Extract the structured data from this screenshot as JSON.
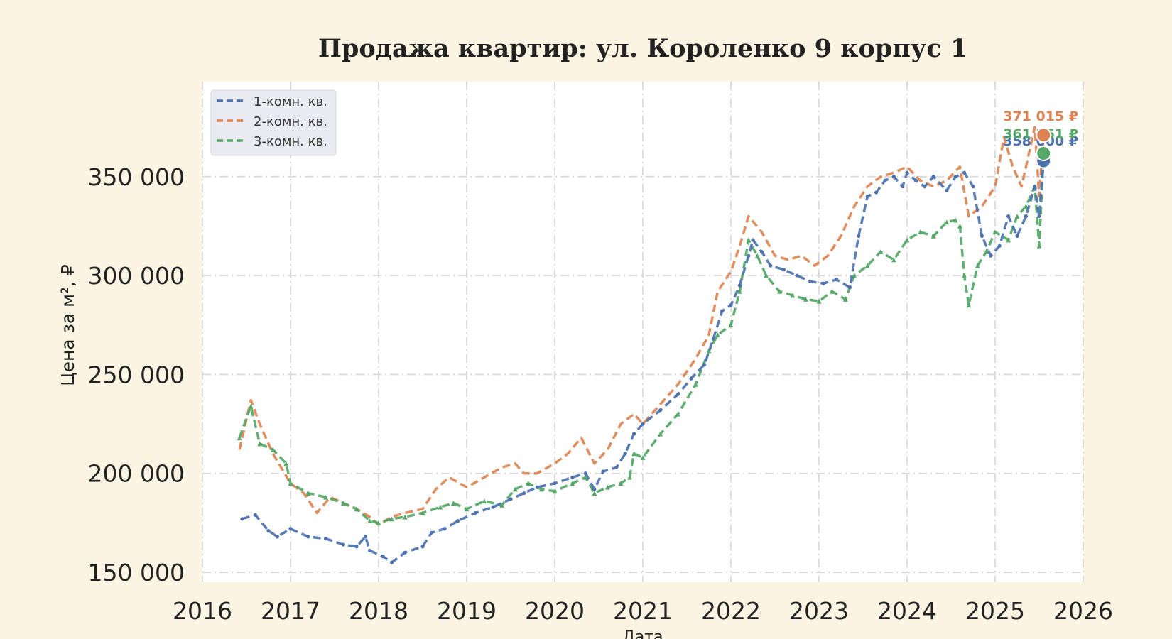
{
  "chart_data": {
    "type": "line",
    "title": "Продажа квартир: ул. Короленко 9 корпус 1",
    "xlabel": "Дата",
    "ylabel": "Цена за м², ₽",
    "xlim": [
      2016,
      2026
    ],
    "ylim": [
      145000,
      398000
    ],
    "x_ticks": [
      "2016",
      "2017",
      "2018",
      "2019",
      "2020",
      "2021",
      "2022",
      "2023",
      "2024",
      "2025",
      "2026"
    ],
    "y_ticks": [
      {
        "value": 150000,
        "label": "150 000"
      },
      {
        "value": 200000,
        "label": "200 000"
      },
      {
        "value": 250000,
        "label": "250 000"
      },
      {
        "value": 300000,
        "label": "300 000"
      },
      {
        "value": 350000,
        "label": "350 000"
      }
    ],
    "grid": true,
    "legend_position": "top-left",
    "series": [
      {
        "name": "1-комн. кв.",
        "color": "#4c72b0",
        "marker": "dot",
        "last_label": "358 000 ₽",
        "last_value": 358000,
        "x": [
          2016.45,
          2016.6,
          2016.75,
          2016.85,
          2017.0,
          2017.2,
          2017.4,
          2017.6,
          2017.75,
          2017.85,
          2017.9,
          2018.05,
          2018.15,
          2018.3,
          2018.5,
          2018.6,
          2018.75,
          2018.9,
          2019.1,
          2019.3,
          2019.5,
          2019.65,
          2019.8,
          2020.0,
          2020.2,
          2020.35,
          2020.45,
          2020.55,
          2020.7,
          2020.8,
          2020.9,
          2021.0,
          2021.2,
          2021.4,
          2021.55,
          2021.7,
          2021.8,
          2021.9,
          2022.0,
          2022.1,
          2022.2,
          2022.25,
          2022.35,
          2022.45,
          2022.6,
          2022.75,
          2022.9,
          2023.05,
          2023.2,
          2023.35,
          2023.45,
          2023.55,
          2023.65,
          2023.75,
          2023.85,
          2023.95,
          2024.0,
          2024.1,
          2024.2,
          2024.3,
          2024.45,
          2024.55,
          2024.65,
          2024.75,
          2024.85,
          2024.95,
          2025.05,
          2025.15,
          2025.25,
          2025.35,
          2025.45,
          2025.5,
          2025.55
        ],
        "values": [
          177000,
          179000,
          171000,
          168000,
          172000,
          168000,
          167000,
          164000,
          163000,
          168000,
          161000,
          158000,
          155000,
          160000,
          163000,
          170000,
          172000,
          176000,
          180000,
          183000,
          187000,
          190000,
          193000,
          195000,
          198000,
          200000,
          192000,
          201000,
          203000,
          210000,
          220000,
          225000,
          232000,
          240000,
          248000,
          255000,
          268000,
          282000,
          285000,
          295000,
          310000,
          318000,
          312000,
          305000,
          303000,
          300000,
          297000,
          296000,
          298000,
          294000,
          320000,
          340000,
          342000,
          348000,
          350000,
          345000,
          352000,
          348000,
          345000,
          350000,
          343000,
          350000,
          352000,
          345000,
          320000,
          310000,
          315000,
          330000,
          320000,
          330000,
          345000,
          330000,
          358000
        ]
      },
      {
        "name": "2-комн. кв.",
        "color": "#dd8452",
        "marker": "none",
        "last_label": "371 015 ₽",
        "last_value": 371015,
        "x": [
          2016.42,
          2016.55,
          2016.65,
          2016.8,
          2017.0,
          2017.15,
          2017.3,
          2017.45,
          2017.6,
          2017.75,
          2017.9,
          2018.0,
          2018.15,
          2018.3,
          2018.5,
          2018.65,
          2018.8,
          2019.0,
          2019.2,
          2019.4,
          2019.55,
          2019.65,
          2019.8,
          2020.0,
          2020.15,
          2020.3,
          2020.45,
          2020.6,
          2020.75,
          2020.9,
          2021.0,
          2021.2,
          2021.4,
          2021.6,
          2021.75,
          2021.85,
          2022.0,
          2022.1,
          2022.2,
          2022.35,
          2022.5,
          2022.65,
          2022.8,
          2022.95,
          2023.1,
          2023.25,
          2023.4,
          2023.55,
          2023.7,
          2023.85,
          2024.0,
          2024.15,
          2024.3,
          2024.45,
          2024.6,
          2024.7,
          2024.85,
          2025.0,
          2025.1,
          2025.2,
          2025.3,
          2025.45,
          2025.5,
          2025.55
        ],
        "values": [
          212000,
          237000,
          225000,
          210000,
          195000,
          190000,
          180000,
          188000,
          185000,
          182000,
          178000,
          174000,
          178000,
          180000,
          182000,
          192000,
          198000,
          193000,
          198000,
          203000,
          205000,
          200000,
          200000,
          205000,
          210000,
          218000,
          205000,
          212000,
          225000,
          230000,
          225000,
          235000,
          245000,
          258000,
          270000,
          292000,
          302000,
          315000,
          330000,
          322000,
          310000,
          308000,
          310000,
          305000,
          310000,
          320000,
          335000,
          345000,
          350000,
          352000,
          355000,
          348000,
          345000,
          348000,
          355000,
          330000,
          335000,
          345000,
          370000,
          355000,
          345000,
          375000,
          340000,
          371015
        ]
      },
      {
        "name": "3-комн. кв.",
        "color": "#55a868",
        "marker": "triangle",
        "last_label": "361 761 ₽",
        "last_value": 361761,
        "x": [
          2016.42,
          2016.55,
          2016.65,
          2016.8,
          2016.95,
          2017.0,
          2017.2,
          2017.4,
          2017.6,
          2017.75,
          2017.9,
          2018.0,
          2018.15,
          2018.3,
          2018.5,
          2018.7,
          2018.85,
          2019.0,
          2019.2,
          2019.4,
          2019.55,
          2019.7,
          2019.85,
          2020.0,
          2020.2,
          2020.35,
          2020.45,
          2020.6,
          2020.75,
          2020.85,
          2020.9,
          2021.0,
          2021.2,
          2021.4,
          2021.6,
          2021.75,
          2021.85,
          2022.0,
          2022.1,
          2022.2,
          2022.3,
          2022.4,
          2022.55,
          2022.7,
          2022.85,
          2023.0,
          2023.15,
          2023.3,
          2023.4,
          2023.55,
          2023.7,
          2023.85,
          2024.0,
          2024.15,
          2024.3,
          2024.45,
          2024.55,
          2024.6,
          2024.65,
          2024.7,
          2024.8,
          2024.9,
          2025.0,
          2025.15,
          2025.25,
          2025.35,
          2025.45,
          2025.5,
          2025.55
        ],
        "values": [
          218000,
          234000,
          215000,
          212000,
          205000,
          195000,
          190000,
          188000,
          185000,
          182000,
          176000,
          175000,
          177000,
          178000,
          180000,
          183000,
          185000,
          182000,
          186000,
          184000,
          192000,
          195000,
          192000,
          191000,
          195000,
          198000,
          190000,
          193000,
          195000,
          198000,
          210000,
          208000,
          220000,
          230000,
          245000,
          262000,
          270000,
          275000,
          292000,
          318000,
          310000,
          300000,
          292000,
          290000,
          288000,
          287000,
          292000,
          288000,
          300000,
          305000,
          312000,
          308000,
          318000,
          322000,
          320000,
          327000,
          328000,
          325000,
          300000,
          285000,
          305000,
          312000,
          322000,
          318000,
          330000,
          335000,
          345000,
          315000,
          361761
        ]
      }
    ]
  }
}
